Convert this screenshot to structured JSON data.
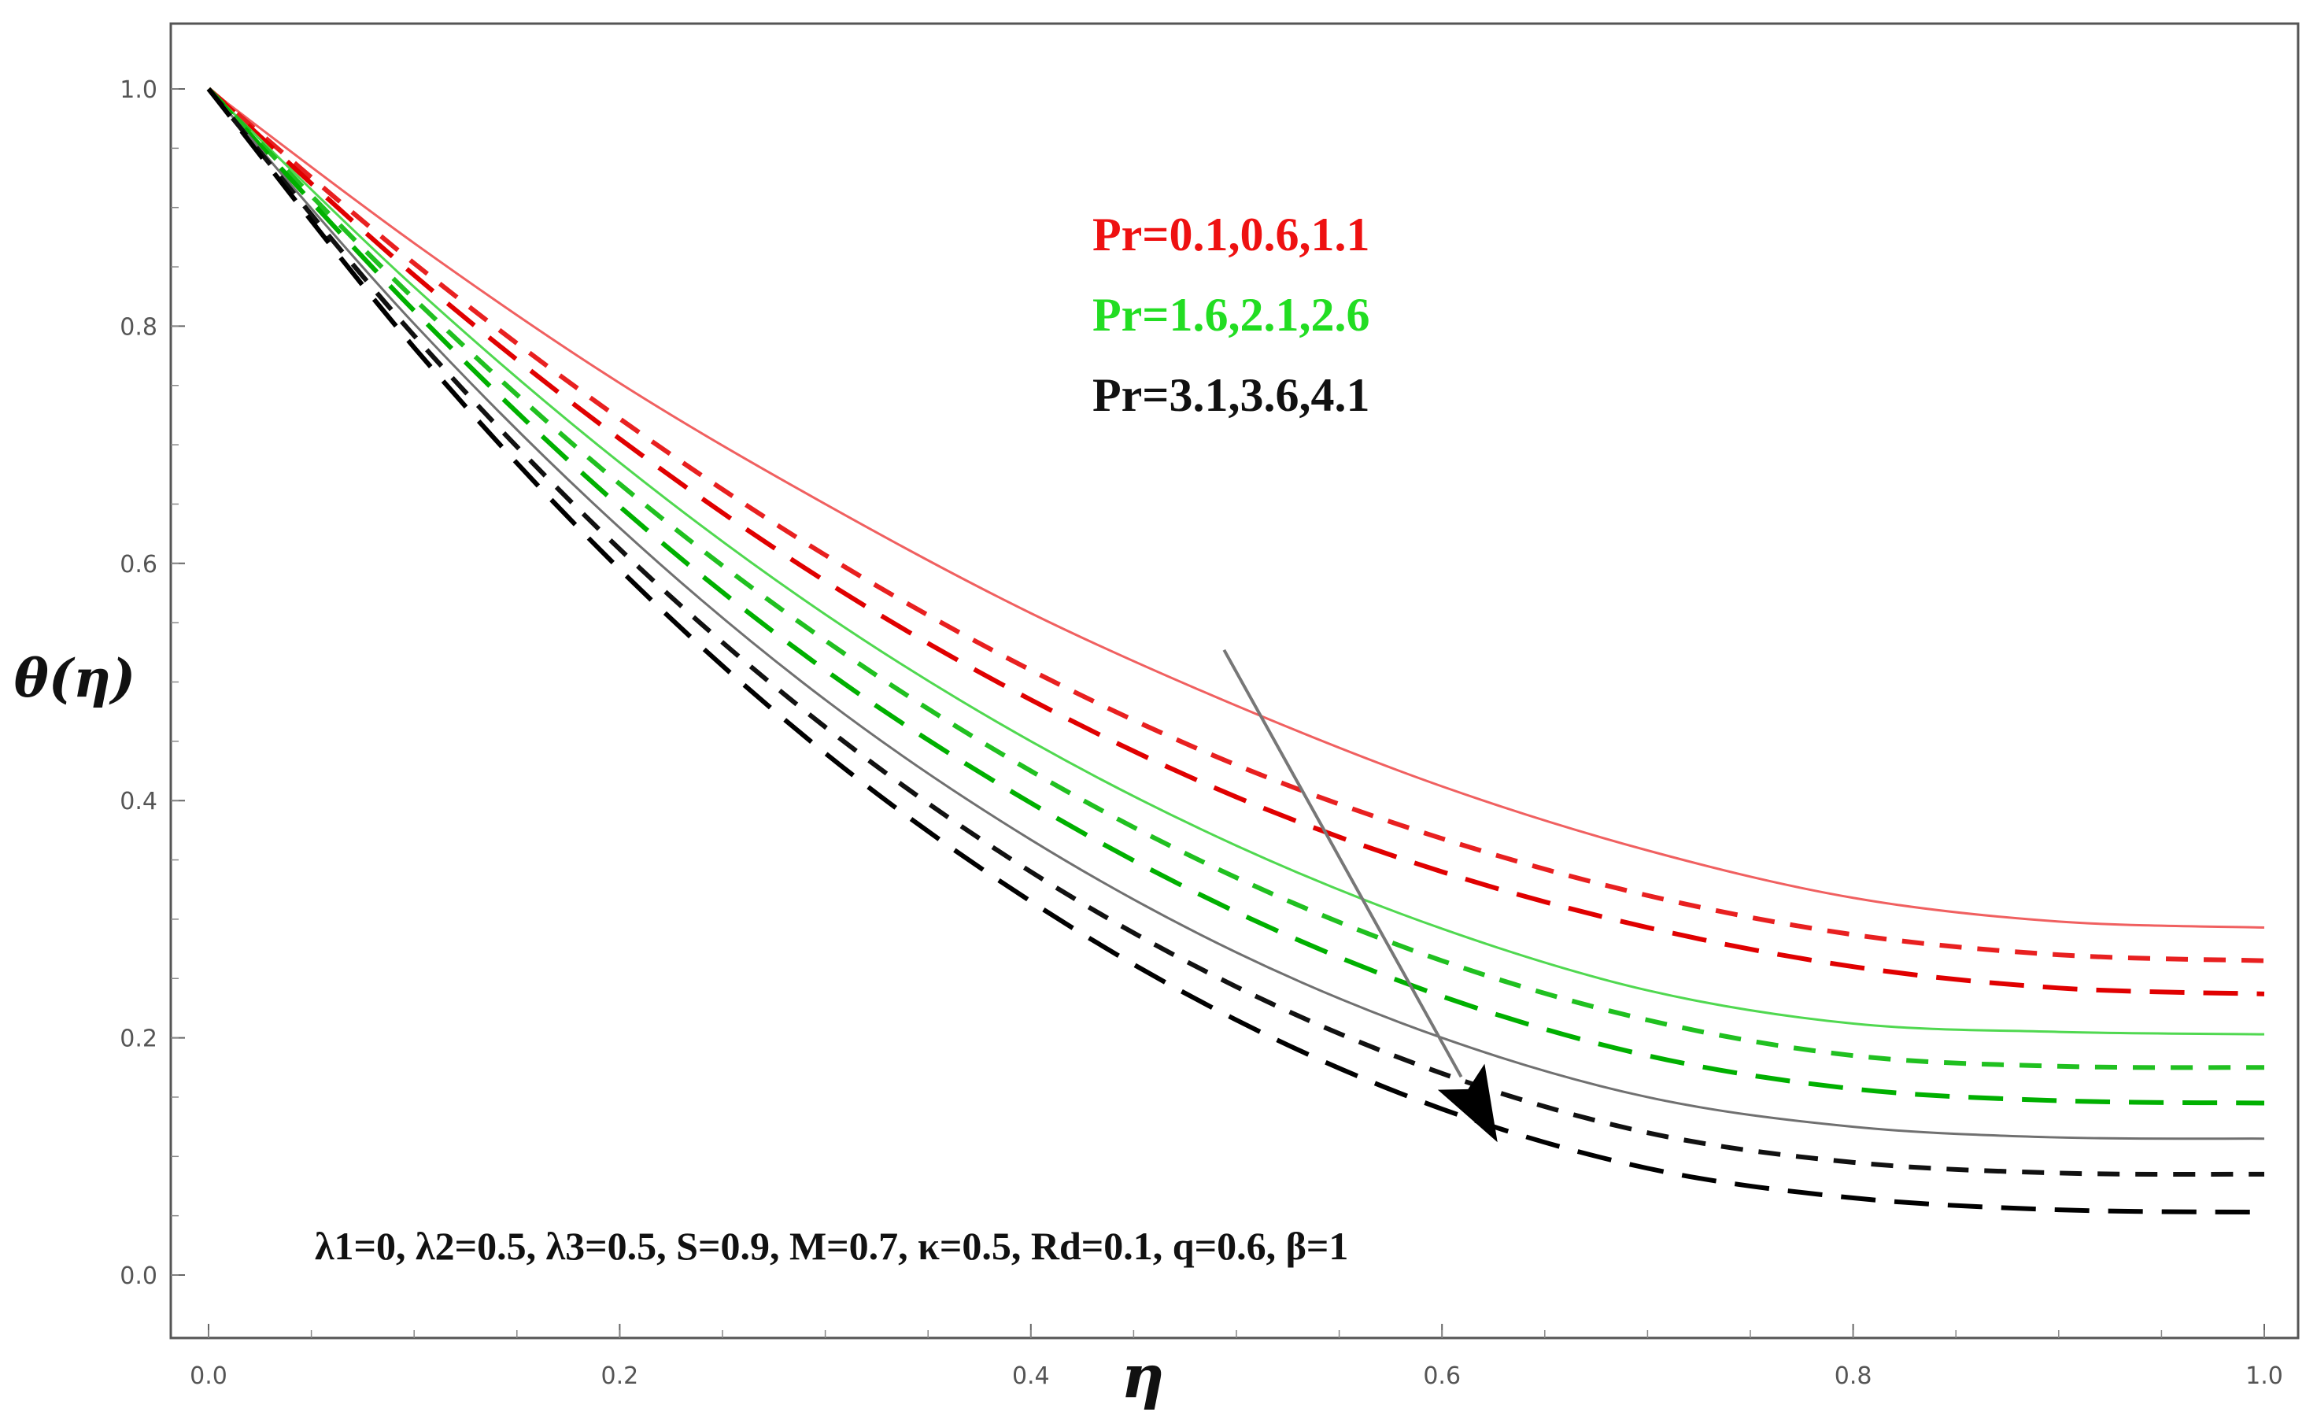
{
  "chart_data": {
    "type": "line",
    "title": "",
    "xlabel": "η",
    "ylabel": "θ(η)",
    "xlim": [
      0.0,
      1.0
    ],
    "ylim": [
      -0.06,
      1.06
    ],
    "x_ticks": [
      "0.0",
      "0.2",
      "0.4",
      "0.6",
      "0.8",
      "1.0"
    ],
    "y_ticks": [
      "0.0",
      "0.2",
      "0.4",
      "0.6",
      "0.8",
      "1.0"
    ],
    "grid": false,
    "x": [
      0.0,
      0.1,
      0.2,
      0.3,
      0.4,
      0.5,
      0.6,
      0.7,
      0.8,
      0.9,
      1.0
    ],
    "series": [
      {
        "name": "Pr=0.1",
        "color": "#f06060",
        "style": "solid",
        "values": [
          1.0,
          0.87,
          0.752,
          0.65,
          0.558,
          0.48,
          0.412,
          0.358,
          0.318,
          0.298,
          0.293
        ]
      },
      {
        "name": "Pr=0.6",
        "color": "#e82020",
        "style": "dashed",
        "values": [
          1.0,
          0.853,
          0.722,
          0.607,
          0.51,
          0.43,
          0.368,
          0.32,
          0.287,
          0.27,
          0.265
        ]
      },
      {
        "name": "Pr=1.1",
        "color": "#e00000",
        "style": "longdash",
        "values": [
          1.0,
          0.843,
          0.705,
          0.585,
          0.485,
          0.403,
          0.34,
          0.293,
          0.26,
          0.242,
          0.237
        ]
      },
      {
        "name": "Pr=1.6",
        "color": "#50d850",
        "style": "solid",
        "values": [
          1.0,
          0.833,
          0.685,
          0.557,
          0.45,
          0.362,
          0.292,
          0.24,
          0.212,
          0.205,
          0.203
        ]
      },
      {
        "name": "Pr=2.1",
        "color": "#20c020",
        "style": "dashed",
        "values": [
          1.0,
          0.823,
          0.667,
          0.535,
          0.425,
          0.335,
          0.265,
          0.215,
          0.185,
          0.176,
          0.175
        ]
      },
      {
        "name": "Pr=2.6",
        "color": "#00b000",
        "style": "longdash",
        "values": [
          1.0,
          0.813,
          0.648,
          0.51,
          0.398,
          0.306,
          0.235,
          0.185,
          0.157,
          0.147,
          0.145
        ]
      },
      {
        "name": "Pr=3.1",
        "color": "#707070",
        "style": "solid",
        "values": [
          1.0,
          0.802,
          0.63,
          0.485,
          0.367,
          0.272,
          0.2,
          0.15,
          0.125,
          0.116,
          0.115
        ]
      },
      {
        "name": "Pr=3.6",
        "color": "#111111",
        "style": "dashed",
        "values": [
          1.0,
          0.792,
          0.612,
          0.462,
          0.34,
          0.243,
          0.17,
          0.12,
          0.095,
          0.086,
          0.085
        ]
      },
      {
        "name": "Pr=4.1",
        "color": "#000000",
        "style": "longdash",
        "values": [
          1.0,
          0.782,
          0.595,
          0.44,
          0.315,
          0.215,
          0.14,
          0.09,
          0.065,
          0.055,
          0.053
        ]
      }
    ],
    "legend": [
      {
        "text": "Pr=0.1,0.6,1.1",
        "color": "#ee1111"
      },
      {
        "text": "Pr=1.6,2.1,2.6",
        "color": "#22dd22"
      },
      {
        "text": "Pr=3.1,3.6,4.1",
        "color": "#111111"
      }
    ],
    "annotation": "λ1=0, λ2=0.5, λ3=0.5, S=0.9, M=0.7, κ=0.5, Rd=0.1, q=0.6, β=1",
    "arrow": {
      "from": [
        0.494,
        0.527
      ],
      "to": [
        0.627,
        0.112
      ],
      "meaning": "increasing Pr"
    }
  }
}
